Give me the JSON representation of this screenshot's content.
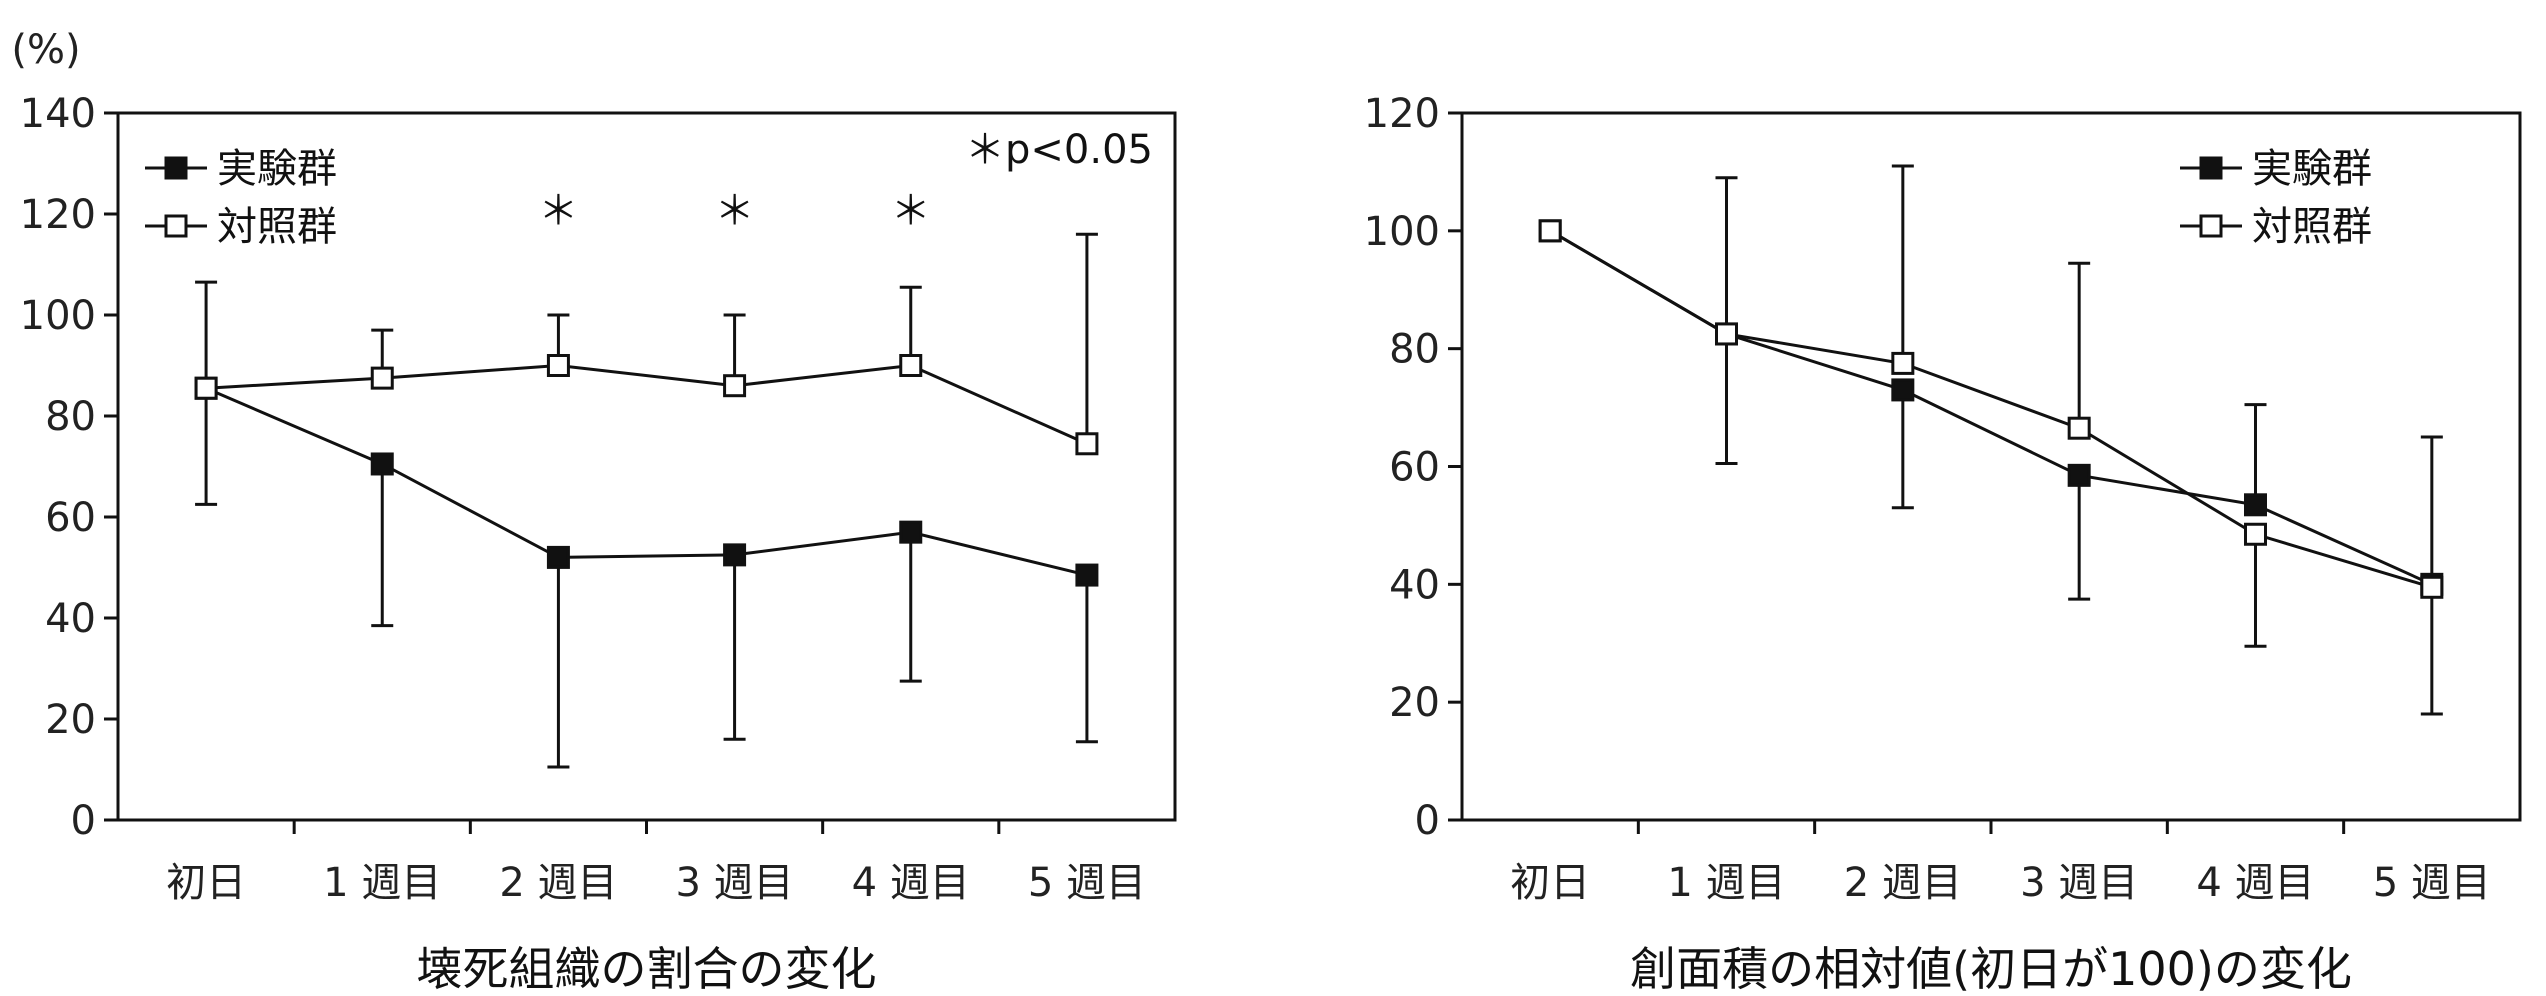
{
  "chart_data": [
    {
      "type": "line",
      "title": "壊死組織の割合の変化",
      "ylabel": "(%)",
      "ylim": [
        0,
        140
      ],
      "yticks": [
        0,
        20,
        40,
        60,
        80,
        100,
        120,
        140
      ],
      "categories": [
        "初日",
        "1 週目",
        "2 週目",
        "3 週目",
        "4 週目",
        "5 週目"
      ],
      "annotation": "＊p<0.05",
      "significance": [
        "",
        "",
        "＊",
        "＊",
        "＊",
        ""
      ],
      "legend_position": "top-left",
      "series": [
        {
          "name": "実験群",
          "marker": "filled-square",
          "values": [
            85.5,
            70.5,
            52,
            52.5,
            57,
            48.5
          ],
          "error": [
            null,
            [
              38.5,
              null
            ],
            [
              10.5,
              null
            ],
            [
              16,
              null
            ],
            [
              27.5,
              null
            ],
            [
              15.5,
              null
            ]
          ]
        },
        {
          "name": "対照群",
          "marker": "open-square",
          "values": [
            85.5,
            87.5,
            90,
            86,
            90,
            74.5
          ],
          "error": [
            [
              62.5,
              106.5
            ],
            [
              null,
              97
            ],
            [
              null,
              100
            ],
            [
              null,
              100
            ],
            [
              null,
              105.5
            ],
            [
              null,
              116
            ]
          ]
        }
      ]
    },
    {
      "type": "line",
      "title": "創面積の相対値(初日が100)の変化",
      "ylabel": "",
      "ylim": [
        0,
        120
      ],
      "yticks": [
        0,
        20,
        40,
        60,
        80,
        100,
        120
      ],
      "categories": [
        "初日",
        "1 週目",
        "2 週目",
        "3 週目",
        "4 週目",
        "5 週目"
      ],
      "legend_position": "top-right",
      "series": [
        {
          "name": "実験群",
          "marker": "filled-square",
          "values": [
            100,
            82.5,
            73,
            58.5,
            53.5,
            40
          ],
          "error": [
            null,
            [
              60.5,
              109
            ],
            [
              53,
              null
            ],
            [
              37.5,
              null
            ],
            [
              null,
              70.5
            ],
            [
              null,
              65
            ]
          ]
        },
        {
          "name": "対照群",
          "marker": "open-square",
          "values": [
            100,
            82.5,
            77.5,
            66.5,
            48.5,
            39.5
          ],
          "error": [
            null,
            null,
            [
              null,
              111
            ],
            [
              null,
              94.5
            ],
            [
              29.5,
              null
            ],
            [
              18,
              null
            ]
          ]
        }
      ]
    }
  ]
}
